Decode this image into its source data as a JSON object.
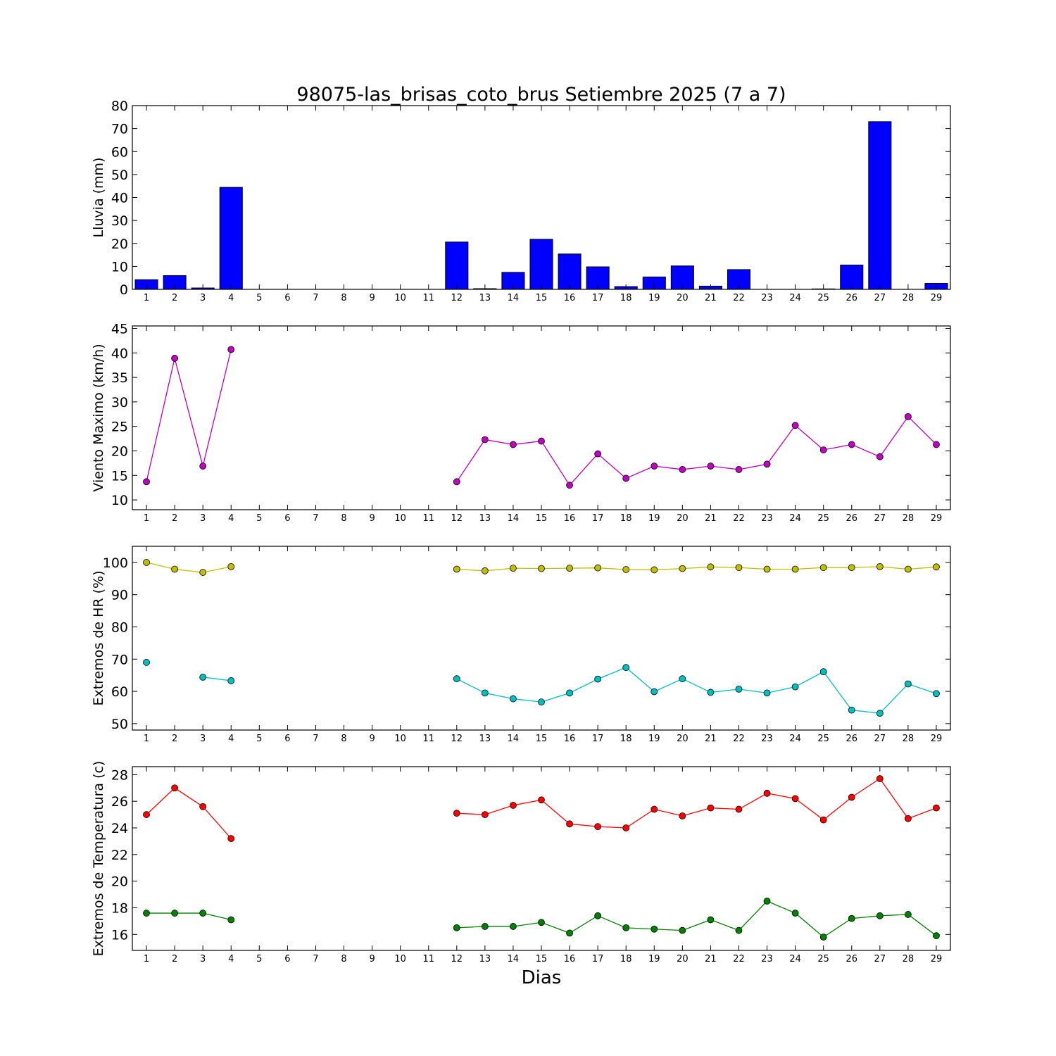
{
  "figure": {
    "title": "98075-las_brisas_coto_brus Setiembre 2025  (7 a 7)",
    "xlabel": "Dias"
  },
  "chart_data": [
    {
      "type": "bar",
      "ylabel": "Lluvia (mm)",
      "ylim": [
        0,
        80
      ],
      "yticks": [
        0,
        10,
        20,
        30,
        40,
        50,
        60,
        70,
        80
      ],
      "xlim": [
        0.5,
        29.5
      ],
      "categories": [
        1,
        2,
        3,
        4,
        5,
        6,
        7,
        8,
        9,
        10,
        11,
        12,
        13,
        14,
        15,
        16,
        17,
        18,
        19,
        20,
        21,
        22,
        23,
        24,
        25,
        26,
        27,
        28,
        29
      ],
      "series": [
        {
          "color": "#0000ff",
          "values": [
            4.2,
            6.0,
            0.6,
            44.4,
            null,
            null,
            null,
            null,
            null,
            null,
            null,
            20.6,
            0.3,
            7.4,
            21.8,
            15.4,
            9.8,
            1.2,
            5.4,
            10.2,
            1.4,
            8.6,
            0,
            0,
            0.2,
            10.6,
            73.0,
            0,
            2.6
          ]
        }
      ],
      "grid": false
    },
    {
      "type": "line",
      "ylabel": "Viento Maximo (km/h)",
      "ylim": [
        8,
        45.5
      ],
      "yticks": [
        10,
        15,
        20,
        25,
        30,
        35,
        40,
        45
      ],
      "xlim": [
        0.5,
        29.5
      ],
      "x": [
        1,
        2,
        3,
        4,
        5,
        6,
        7,
        8,
        9,
        10,
        11,
        12,
        13,
        14,
        15,
        16,
        17,
        18,
        19,
        20,
        21,
        22,
        23,
        24,
        25,
        26,
        27,
        28,
        29
      ],
      "series": [
        {
          "color": "#bf00bf",
          "values": [
            13.7,
            38.9,
            16.9,
            40.7,
            null,
            null,
            null,
            null,
            null,
            null,
            null,
            13.7,
            22.3,
            21.3,
            22.0,
            13.0,
            19.4,
            14.4,
            16.9,
            16.2,
            16.9,
            16.2,
            17.3,
            25.2,
            20.2,
            21.3,
            18.8,
            27.0,
            21.3
          ]
        }
      ],
      "grid": false
    },
    {
      "type": "line",
      "ylabel": "Extremos de HR (%)",
      "ylim": [
        48,
        105
      ],
      "yticks": [
        50,
        60,
        70,
        80,
        90,
        100
      ],
      "xlim": [
        0.5,
        29.5
      ],
      "x": [
        1,
        2,
        3,
        4,
        5,
        6,
        7,
        8,
        9,
        10,
        11,
        12,
        13,
        14,
        15,
        16,
        17,
        18,
        19,
        20,
        21,
        22,
        23,
        24,
        25,
        26,
        27,
        28,
        29
      ],
      "series": [
        {
          "color": "#bfbf00",
          "values": [
            100.0,
            97.9,
            96.9,
            98.7,
            null,
            null,
            null,
            null,
            null,
            null,
            null,
            97.9,
            97.4,
            98.2,
            98.1,
            98.2,
            98.3,
            97.8,
            97.7,
            98.1,
            98.6,
            98.4,
            97.9,
            97.9,
            98.4,
            98.4,
            98.7,
            97.9,
            98.6
          ]
        },
        {
          "color": "#00bfbf",
          "values": [
            69.0,
            null,
            64.4,
            63.3,
            null,
            null,
            null,
            null,
            null,
            null,
            null,
            63.9,
            59.5,
            57.7,
            56.7,
            59.5,
            63.8,
            67.4,
            59.9,
            63.9,
            59.7,
            60.7,
            59.5,
            61.4,
            66.1,
            54.2,
            53.2,
            62.3,
            59.3
          ]
        }
      ],
      "grid": false
    },
    {
      "type": "line",
      "ylabel": "Extremos de Temperatura (c)",
      "ylim": [
        14.8,
        28.6
      ],
      "yticks": [
        16,
        18,
        20,
        22,
        24,
        26,
        28
      ],
      "xlim": [
        0.5,
        29.5
      ],
      "x": [
        1,
        2,
        3,
        4,
        5,
        6,
        7,
        8,
        9,
        10,
        11,
        12,
        13,
        14,
        15,
        16,
        17,
        18,
        19,
        20,
        21,
        22,
        23,
        24,
        25,
        26,
        27,
        28,
        29
      ],
      "series": [
        {
          "color": "#ff0000",
          "values": [
            25.0,
            27.0,
            25.6,
            23.2,
            null,
            null,
            null,
            null,
            null,
            null,
            null,
            25.1,
            25.0,
            25.7,
            26.1,
            24.3,
            24.1,
            24.0,
            25.4,
            24.9,
            25.5,
            25.4,
            26.6,
            26.2,
            24.6,
            26.3,
            27.7,
            24.7,
            25.5
          ]
        },
        {
          "color": "#008000",
          "values": [
            17.6,
            17.6,
            17.6,
            17.1,
            null,
            null,
            null,
            null,
            null,
            null,
            null,
            16.5,
            16.6,
            16.6,
            16.9,
            16.1,
            17.4,
            16.5,
            16.4,
            16.3,
            17.1,
            16.3,
            18.5,
            17.6,
            15.8,
            17.2,
            17.4,
            17.5,
            15.9
          ]
        }
      ],
      "grid": false
    }
  ]
}
